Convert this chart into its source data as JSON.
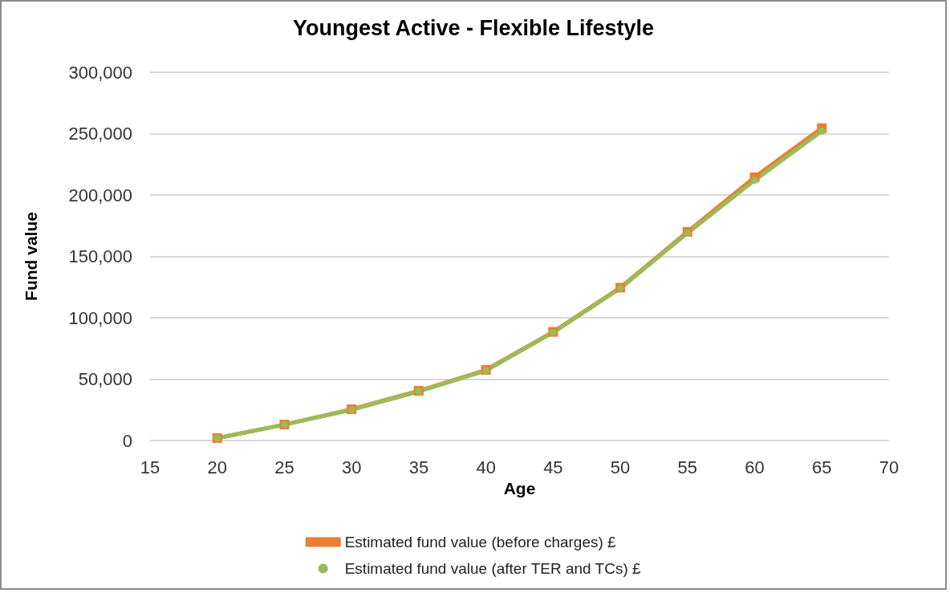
{
  "chart_data": {
    "type": "line",
    "title": "Youngest Active - Flexible Lifestyle",
    "xlabel": "Age",
    "ylabel": "Fund value",
    "x": [
      20,
      25,
      30,
      35,
      40,
      45,
      50,
      55,
      60,
      65
    ],
    "series": [
      {
        "name": "Estimated fund value (before charges) £",
        "color": "#ed7d31",
        "marker": "square",
        "values": [
          2000,
          13000,
          25500,
          40500,
          57500,
          88500,
          124500,
          170000,
          214500,
          254500
        ]
      },
      {
        "name": "Estimated fund value (after TER and TCs) £",
        "color": "#9bbb59",
        "marker": "circle",
        "values": [
          2000,
          13000,
          25000,
          40000,
          57000,
          88000,
          124000,
          169000,
          212000,
          252000
        ]
      }
    ],
    "xlim": [
      15,
      70
    ],
    "xticks": [
      15,
      20,
      25,
      30,
      35,
      40,
      45,
      50,
      55,
      60,
      65,
      70
    ],
    "ylim": [
      0,
      300000
    ],
    "yticks": [
      0,
      {
        "value": 50000,
        "label": "50,000"
      },
      {
        "value": 100000,
        "label": "100,000"
      },
      {
        "value": 150000,
        "label": "150,000"
      },
      {
        "value": 200000,
        "label": "200,000"
      },
      {
        "value": 250000,
        "label": "250,000"
      },
      {
        "value": 300000,
        "label": "300,000"
      }
    ],
    "grid": "y",
    "legend": "bottom",
    "line_style": "solid"
  }
}
